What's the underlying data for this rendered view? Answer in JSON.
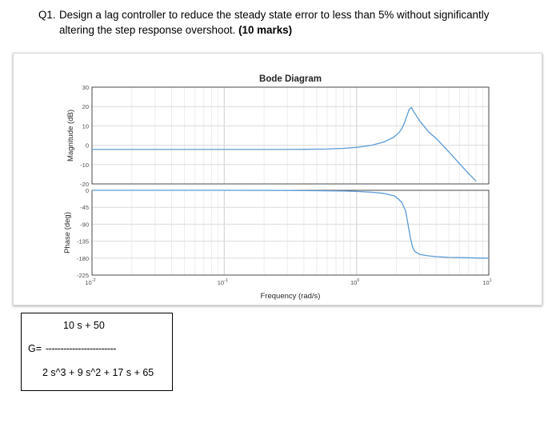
{
  "question": {
    "number": "Q1.",
    "line1": "Design a lag controller to reduce the steady state error to less than 5% without significantly",
    "line2": "altering the step response overshoot.",
    "marks": "(10 marks)"
  },
  "chart_data": {
    "type": "line",
    "title": "Bode Diagram",
    "xlabel": "Frequency (rad/s)",
    "x_scale": "log",
    "xlim": [
      0.01,
      10
    ],
    "x_ticks": [
      {
        "value": 0.01,
        "base": "10",
        "exp": "-2"
      },
      {
        "value": 0.1,
        "base": "10",
        "exp": "-1"
      },
      {
        "value": 1,
        "base": "10",
        "exp": "0"
      },
      {
        "value": 10,
        "base": "10",
        "exp": "1"
      }
    ],
    "grid": true,
    "line_color": "#5b9bd5",
    "magnitude": {
      "ylabel": "Magnitude (dB)",
      "ylim": [
        -20,
        30
      ],
      "yticks": [
        -20,
        -10,
        0,
        10,
        20,
        30
      ],
      "ytick_labels": [
        "-20",
        "-10",
        "0",
        "10",
        "20",
        "30"
      ],
      "x": [
        0.01,
        0.05,
        0.1,
        0.3,
        0.6,
        0.8,
        1.0,
        1.3,
        1.6,
        1.9,
        2.1,
        2.2,
        2.3,
        2.4,
        2.5,
        2.6,
        2.7,
        3.0,
        3.5,
        4.0,
        5.0,
        6.0,
        7.0,
        8.0
      ],
      "y": [
        -2.2,
        -2.2,
        -2.2,
        -2.2,
        -2.0,
        -1.6,
        -1.1,
        0.0,
        1.6,
        4.0,
        6.6,
        8.6,
        11.5,
        15.0,
        18.5,
        19.5,
        17.5,
        12.5,
        7.0,
        3.5,
        -3.5,
        -9.5,
        -14.5,
        -18.5
      ]
    },
    "phase": {
      "ylabel": "Phase (deg)",
      "ylim": [
        -225,
        0
      ],
      "yticks": [
        -225,
        -180,
        -135,
        -90,
        -45,
        0
      ],
      "ytick_labels": [
        "-225",
        "-180",
        "-135",
        "-90",
        "-45",
        "0"
      ],
      "x": [
        0.01,
        0.1,
        0.3,
        0.5,
        0.8,
        1.0,
        1.3,
        1.6,
        1.9,
        2.0,
        2.2,
        2.35,
        2.45,
        2.55,
        2.65,
        2.75,
        3.0,
        3.5,
        4.0,
        5.0,
        7.0,
        9.0,
        10.0
      ],
      "y": [
        0,
        0,
        -0.5,
        -1,
        -2,
        -3,
        -5,
        -8,
        -14,
        -18,
        -32,
        -55,
        -90,
        -125,
        -150,
        -162,
        -170,
        -174,
        -176,
        -178,
        -179,
        -180,
        -180
      ]
    }
  },
  "transfer_function": {
    "numerator": "10 s + 50",
    "g_label": "G=",
    "fraction_bar": "------------------------",
    "denominator": "2 s^3 + 9 s^2 + 17 s + 65"
  }
}
